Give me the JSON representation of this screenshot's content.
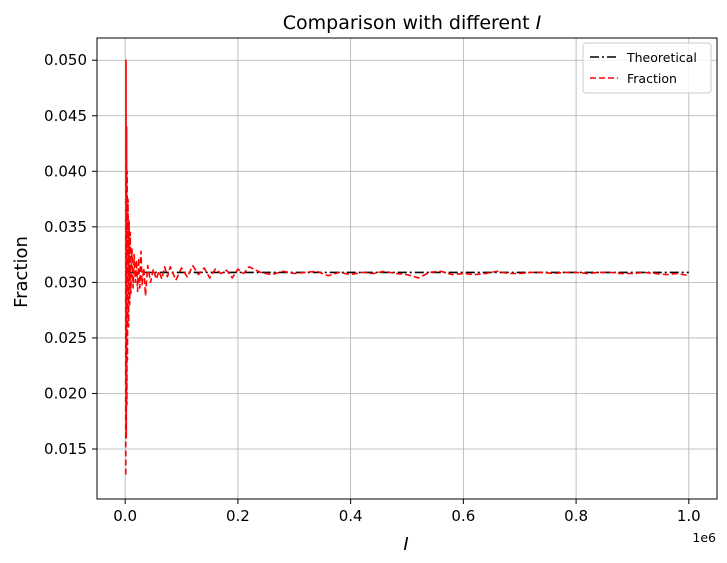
{
  "chart_data": {
    "type": "line",
    "title": "Comparison with different",
    "title_symbol": "I",
    "xlabel": "I",
    "ylabel": "Fraction",
    "x_offset_text": "1e6",
    "xlim": [
      -50000,
      1050000
    ],
    "ylim": [
      0.0105,
      0.052
    ],
    "grid": true,
    "legend_position": "top-right",
    "x_ticks": [
      {
        "value": 0,
        "label": "0.0"
      },
      {
        "value": 200000,
        "label": "0.2"
      },
      {
        "value": 400000,
        "label": "0.4"
      },
      {
        "value": 600000,
        "label": "0.6"
      },
      {
        "value": 800000,
        "label": "0.8"
      },
      {
        "value": 1000000,
        "label": "1.0"
      }
    ],
    "y_ticks": [
      {
        "value": 0.015,
        "label": "0.015"
      },
      {
        "value": 0.02,
        "label": "0.020"
      },
      {
        "value": 0.025,
        "label": "0.025"
      },
      {
        "value": 0.03,
        "label": "0.030"
      },
      {
        "value": 0.035,
        "label": "0.035"
      },
      {
        "value": 0.04,
        "label": "0.040"
      },
      {
        "value": 0.045,
        "label": "0.045"
      },
      {
        "value": 0.05,
        "label": "0.050"
      }
    ],
    "series": [
      {
        "name": "Theoretical",
        "color": "#000000",
        "style": "dashdot",
        "x": [
          1000,
          1000000
        ],
        "y": [
          0.0309,
          0.0309
        ]
      },
      {
        "name": "Fraction",
        "color": "#ff0000",
        "style": "dashed",
        "x": [
          1000,
          1500,
          2000,
          2500,
          3000,
          3500,
          4000,
          5000,
          6000,
          7000,
          8000,
          9000,
          10000,
          12000,
          14000,
          16000,
          18000,
          20000,
          22000,
          24000,
          26000,
          28000,
          30000,
          33000,
          36000,
          40000,
          45000,
          50000,
          55000,
          60000,
          65000,
          70000,
          75000,
          80000,
          90000,
          100000,
          110000,
          120000,
          130000,
          140000,
          150000,
          160000,
          170000,
          180000,
          190000,
          200000,
          210000,
          220000,
          240000,
          260000,
          280000,
          300000,
          320000,
          340000,
          360000,
          380000,
          400000,
          420000,
          440000,
          460000,
          480000,
          500000,
          520000,
          540000,
          560000,
          580000,
          600000,
          620000,
          640000,
          660000,
          680000,
          700000,
          720000,
          740000,
          760000,
          780000,
          800000,
          820000,
          840000,
          860000,
          880000,
          900000,
          920000,
          940000,
          960000,
          980000,
          1000000
        ],
        "y": [
          0.0127,
          0.05,
          0.016,
          0.044,
          0.019,
          0.04,
          0.023,
          0.0375,
          0.026,
          0.0355,
          0.028,
          0.0345,
          0.029,
          0.033,
          0.0295,
          0.0325,
          0.03,
          0.032,
          0.0292,
          0.0322,
          0.0295,
          0.0328,
          0.0298,
          0.0313,
          0.0288,
          0.0315,
          0.03,
          0.0312,
          0.0303,
          0.031,
          0.0303,
          0.0314,
          0.0305,
          0.0314,
          0.0302,
          0.0313,
          0.0305,
          0.0315,
          0.0307,
          0.0313,
          0.0304,
          0.0312,
          0.0308,
          0.0311,
          0.0304,
          0.0312,
          0.0308,
          0.0314,
          0.0309,
          0.0307,
          0.031,
          0.0308,
          0.0309,
          0.031,
          0.0306,
          0.0309,
          0.0307,
          0.0309,
          0.0308,
          0.031,
          0.0308,
          0.0307,
          0.0304,
          0.0309,
          0.031,
          0.0307,
          0.0308,
          0.0307,
          0.0308,
          0.031,
          0.0308,
          0.0308,
          0.0309,
          0.0309,
          0.0308,
          0.0309,
          0.0309,
          0.0308,
          0.0309,
          0.0309,
          0.0308,
          0.0308,
          0.0309,
          0.0308,
          0.0307,
          0.0308,
          0.0306
        ]
      }
    ]
  }
}
